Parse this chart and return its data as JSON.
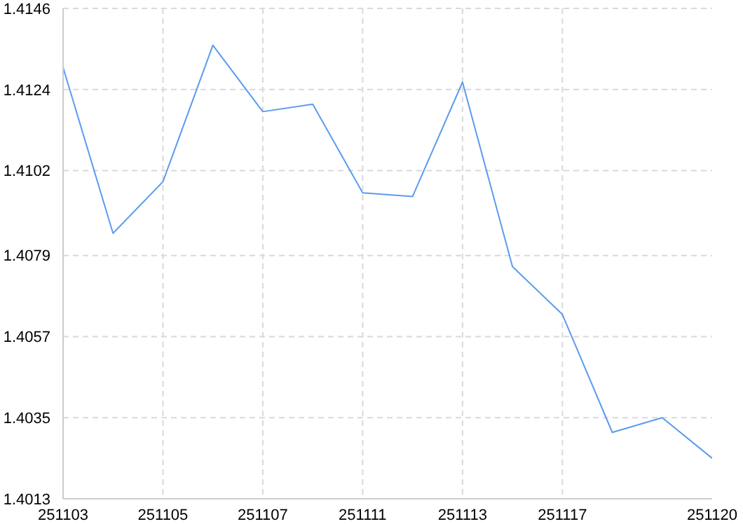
{
  "chart_data": {
    "type": "line",
    "categories": [
      "251103",
      null,
      "251105",
      null,
      "251107",
      null,
      "251111",
      null,
      "251113",
      null,
      "251117",
      null,
      null,
      "251120"
    ],
    "series": [
      {
        "color": "#5b9bf0",
        "values": [
          1.413,
          1.4085,
          1.4099,
          1.4136,
          1.4118,
          1.412,
          1.4096,
          1.4095,
          1.4126,
          1.4076,
          1.4063,
          1.4031,
          1.4035,
          1.4024
        ]
      }
    ],
    "ylim": [
      1.4013,
      1.4146
    ],
    "yticks": [
      1.4013,
      1.4035,
      1.4057,
      1.4079,
      1.4102,
      1.4124,
      1.4146
    ],
    "grid": true,
    "marker": "none",
    "line_style": "solid"
  }
}
